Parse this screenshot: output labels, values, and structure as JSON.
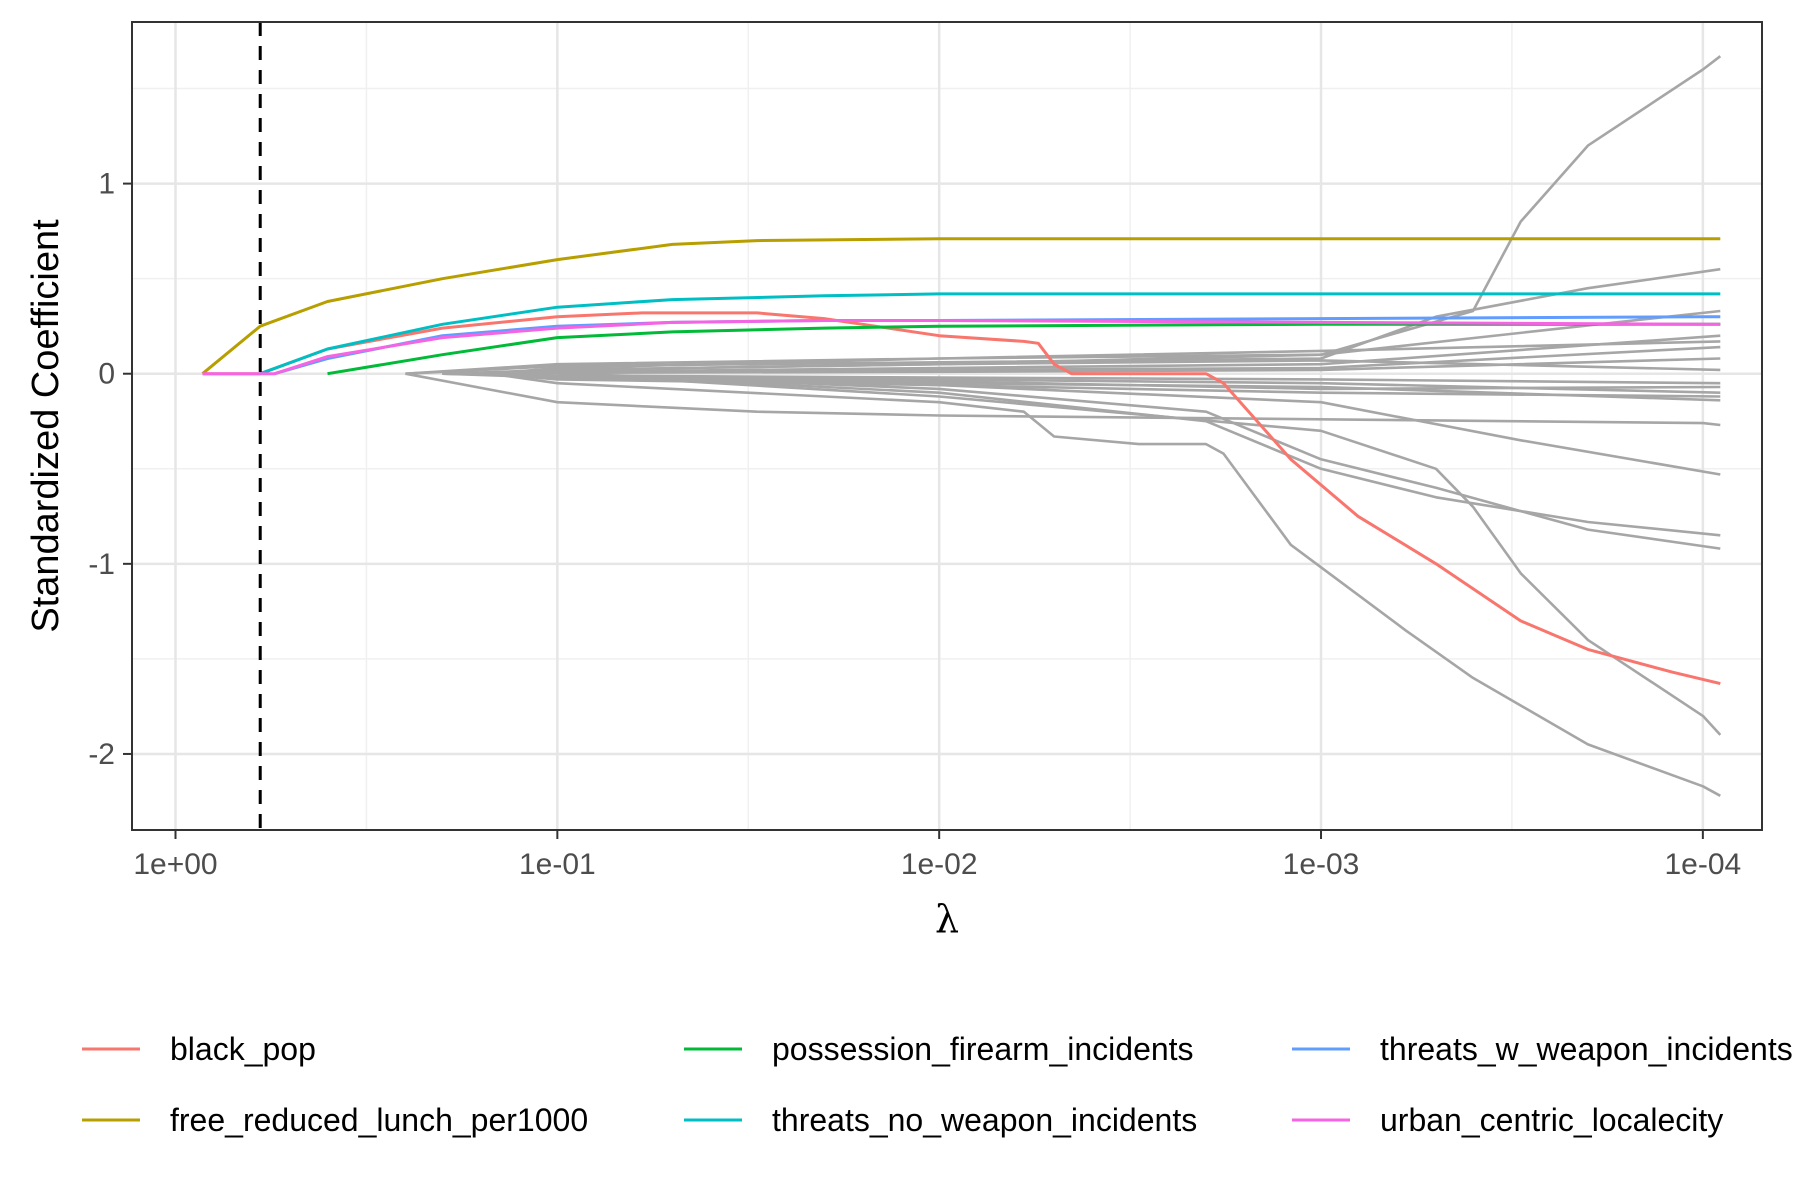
{
  "chart_data": {
    "type": "line",
    "title": "",
    "xlabel": "λ",
    "ylabel": "Standardized Coefficient",
    "x_scale": "log10-reversed",
    "x_ticks": [
      1,
      0.1,
      0.01,
      0.001,
      0.0001
    ],
    "x_tick_labels": [
      "1e+00",
      "1e-01",
      "1e-02",
      "1e-03",
      "1e-04"
    ],
    "x_range": [
      1.3,
      7e-05
    ],
    "y_ticks": [
      -2,
      -1,
      0,
      1
    ],
    "y_tick_labels": [
      "-2",
      "-1",
      "0",
      "1"
    ],
    "ylim": [
      -2.4,
      1.85
    ],
    "grid": true,
    "legend_position": "bottom",
    "vline": {
      "x": 0.6,
      "style": "dashed"
    },
    "series": [
      {
        "name": "black_pop",
        "color": "#F8766D",
        "points": [
          [
            0.85,
            0
          ],
          [
            0.6,
            0
          ],
          [
            0.4,
            0.13
          ],
          [
            0.2,
            0.24
          ],
          [
            0.1,
            0.3
          ],
          [
            0.06,
            0.32
          ],
          [
            0.03,
            0.32
          ],
          [
            0.02,
            0.29
          ],
          [
            0.01,
            0.2
          ],
          [
            0.006,
            0.17
          ],
          [
            0.0055,
            0.16
          ],
          [
            0.005,
            0.05
          ],
          [
            0.0045,
            0
          ],
          [
            0.003,
            0
          ],
          [
            0.002,
            0
          ],
          [
            0.0018,
            -0.05
          ],
          [
            0.0012,
            -0.45
          ],
          [
            0.0008,
            -0.75
          ],
          [
            0.0005,
            -1.0
          ],
          [
            0.0003,
            -1.3
          ],
          [
            0.0002,
            -1.45
          ],
          [
            0.00012,
            -1.57
          ],
          [
            9e-05,
            -1.63
          ]
        ]
      },
      {
        "name": "free_reduced_lunch_per1000",
        "color": "#B79F00",
        "points": [
          [
            0.85,
            0
          ],
          [
            0.6,
            0.25
          ],
          [
            0.4,
            0.38
          ],
          [
            0.2,
            0.5
          ],
          [
            0.1,
            0.6
          ],
          [
            0.05,
            0.68
          ],
          [
            0.03,
            0.7
          ],
          [
            0.01,
            0.71
          ],
          [
            0.001,
            0.71
          ],
          [
            9e-05,
            0.71
          ]
        ]
      },
      {
        "name": "possession_firearm_incidents",
        "color": "#00BA38",
        "points": [
          [
            0.4,
            0
          ],
          [
            0.2,
            0.1
          ],
          [
            0.1,
            0.19
          ],
          [
            0.05,
            0.22
          ],
          [
            0.02,
            0.24
          ],
          [
            0.01,
            0.25
          ],
          [
            0.001,
            0.26
          ],
          [
            9e-05,
            0.26
          ]
        ]
      },
      {
        "name": "threats_no_weapon_incidents",
        "color": "#00BFC4",
        "points": [
          [
            0.6,
            0
          ],
          [
            0.4,
            0.13
          ],
          [
            0.2,
            0.26
          ],
          [
            0.1,
            0.35
          ],
          [
            0.05,
            0.39
          ],
          [
            0.02,
            0.41
          ],
          [
            0.01,
            0.42
          ],
          [
            0.001,
            0.42
          ],
          [
            9e-05,
            0.42
          ]
        ]
      },
      {
        "name": "threats_w_weapon_incidents",
        "color": "#619CFF",
        "points": [
          [
            0.55,
            0
          ],
          [
            0.4,
            0.08
          ],
          [
            0.2,
            0.2
          ],
          [
            0.1,
            0.25
          ],
          [
            0.05,
            0.27
          ],
          [
            0.02,
            0.28
          ],
          [
            0.01,
            0.28
          ],
          [
            0.001,
            0.29
          ],
          [
            0.0001,
            0.3
          ],
          [
            9e-05,
            0.3
          ]
        ]
      },
      {
        "name": "urban_centric_localecity",
        "color": "#F564E3",
        "points": [
          [
            0.85,
            0
          ],
          [
            0.55,
            0
          ],
          [
            0.4,
            0.09
          ],
          [
            0.2,
            0.19
          ],
          [
            0.1,
            0.24
          ],
          [
            0.05,
            0.27
          ],
          [
            0.02,
            0.28
          ],
          [
            0.01,
            0.28
          ],
          [
            0.001,
            0.27
          ],
          [
            9e-05,
            0.26
          ]
        ]
      }
    ],
    "background_series": [
      [
        [
          0.25,
          0
        ],
        [
          0.1,
          0.05
        ],
        [
          0.01,
          0.08
        ],
        [
          0.001,
          0.1
        ],
        [
          0.0004,
          0.33
        ],
        [
          0.0003,
          0.8
        ],
        [
          0.0002,
          1.2
        ],
        [
          0.0001,
          1.6
        ],
        [
          9e-05,
          1.67
        ]
      ],
      [
        [
          0.25,
          0
        ],
        [
          0.1,
          0.04
        ],
        [
          0.01,
          0.06
        ],
        [
          0.001,
          0.08
        ],
        [
          0.0005,
          0.3
        ],
        [
          0.0002,
          0.45
        ],
        [
          9e-05,
          0.55
        ]
      ],
      [
        [
          0.25,
          0
        ],
        [
          0.1,
          -0.15
        ],
        [
          0.03,
          -0.2
        ],
        [
          0.01,
          -0.22
        ],
        [
          0.001,
          -0.24
        ],
        [
          0.0001,
          -0.26
        ],
        [
          9e-05,
          -0.27
        ]
      ],
      [
        [
          0.15,
          0
        ],
        [
          0.1,
          -0.05
        ],
        [
          0.01,
          -0.15
        ],
        [
          0.006,
          -0.2
        ],
        [
          0.005,
          -0.33
        ],
        [
          0.003,
          -0.37
        ],
        [
          0.002,
          -0.37
        ],
        [
          0.0018,
          -0.42
        ],
        [
          0.0012,
          -0.9
        ],
        [
          0.0006,
          -1.35
        ],
        [
          0.0004,
          -1.6
        ],
        [
          0.0002,
          -1.95
        ],
        [
          0.0001,
          -2.17
        ],
        [
          9e-05,
          -2.22
        ]
      ],
      [
        [
          0.1,
          0
        ],
        [
          0.01,
          -0.12
        ],
        [
          0.001,
          -0.3
        ],
        [
          0.0005,
          -0.5
        ],
        [
          0.0004,
          -0.7
        ],
        [
          0.0003,
          -1.05
        ],
        [
          0.0002,
          -1.4
        ],
        [
          0.0001,
          -1.8
        ],
        [
          9e-05,
          -1.9
        ]
      ],
      [
        [
          0.1,
          0
        ],
        [
          0.01,
          -0.1
        ],
        [
          0.002,
          -0.25
        ],
        [
          0.001,
          -0.5
        ],
        [
          0.0005,
          -0.65
        ],
        [
          0.0002,
          -0.78
        ],
        [
          9e-05,
          -0.85
        ]
      ],
      [
        [
          0.1,
          0
        ],
        [
          0.01,
          -0.08
        ],
        [
          0.002,
          -0.2
        ],
        [
          0.001,
          -0.45
        ],
        [
          0.0005,
          -0.6
        ],
        [
          0.0002,
          -0.82
        ],
        [
          9e-05,
          -0.92
        ]
      ],
      [
        [
          0.1,
          0
        ],
        [
          0.01,
          -0.06
        ],
        [
          0.001,
          -0.15
        ],
        [
          0.0003,
          -0.35
        ],
        [
          9e-05,
          -0.53
        ]
      ],
      [
        [
          0.2,
          0
        ],
        [
          0.1,
          0.02
        ],
        [
          0.01,
          0.05
        ],
        [
          0.001,
          0.1
        ],
        [
          9e-05,
          0.33
        ]
      ],
      [
        [
          0.2,
          0
        ],
        [
          0.1,
          0.01
        ],
        [
          0.01,
          0.03
        ],
        [
          0.001,
          0.05
        ],
        [
          9e-05,
          0.2
        ]
      ],
      [
        [
          0.2,
          0
        ],
        [
          0.1,
          0.01
        ],
        [
          0.01,
          0.02
        ],
        [
          0.001,
          0.03
        ],
        [
          9e-05,
          0.14
        ]
      ],
      [
        [
          0.2,
          0
        ],
        [
          0.1,
          0.005
        ],
        [
          0.01,
          0.01
        ],
        [
          0.001,
          0.02
        ],
        [
          9e-05,
          0.08
        ]
      ],
      [
        [
          0.2,
          0
        ],
        [
          0.1,
          -0.01
        ],
        [
          0.01,
          -0.02
        ],
        [
          0.001,
          -0.03
        ],
        [
          9e-05,
          -0.05
        ]
      ],
      [
        [
          0.2,
          0
        ],
        [
          0.1,
          -0.01
        ],
        [
          0.01,
          -0.03
        ],
        [
          0.001,
          -0.05
        ],
        [
          9e-05,
          -0.1
        ]
      ],
      [
        [
          0.2,
          0
        ],
        [
          0.1,
          -0.02
        ],
        [
          0.01,
          -0.05
        ],
        [
          0.001,
          -0.07
        ],
        [
          9e-05,
          -0.14
        ]
      ],
      [
        [
          0.15,
          0
        ],
        [
          0.1,
          0.03
        ],
        [
          0.01,
          0.08
        ],
        [
          0.001,
          0.12
        ],
        [
          9e-05,
          0.17
        ]
      ],
      [
        [
          0.15,
          0
        ],
        [
          0.1,
          -0.03
        ],
        [
          0.01,
          -0.06
        ],
        [
          0.001,
          -0.1
        ],
        [
          9e-05,
          -0.12
        ]
      ],
      [
        [
          0.15,
          0
        ],
        [
          0.1,
          0.02
        ],
        [
          0.01,
          0.05
        ],
        [
          0.001,
          0.07
        ],
        [
          9e-05,
          0.02
        ]
      ],
      [
        [
          0.15,
          0
        ],
        [
          0.1,
          -0.02
        ],
        [
          0.01,
          -0.04
        ],
        [
          0.001,
          -0.08
        ],
        [
          9e-05,
          -0.07
        ]
      ]
    ]
  }
}
